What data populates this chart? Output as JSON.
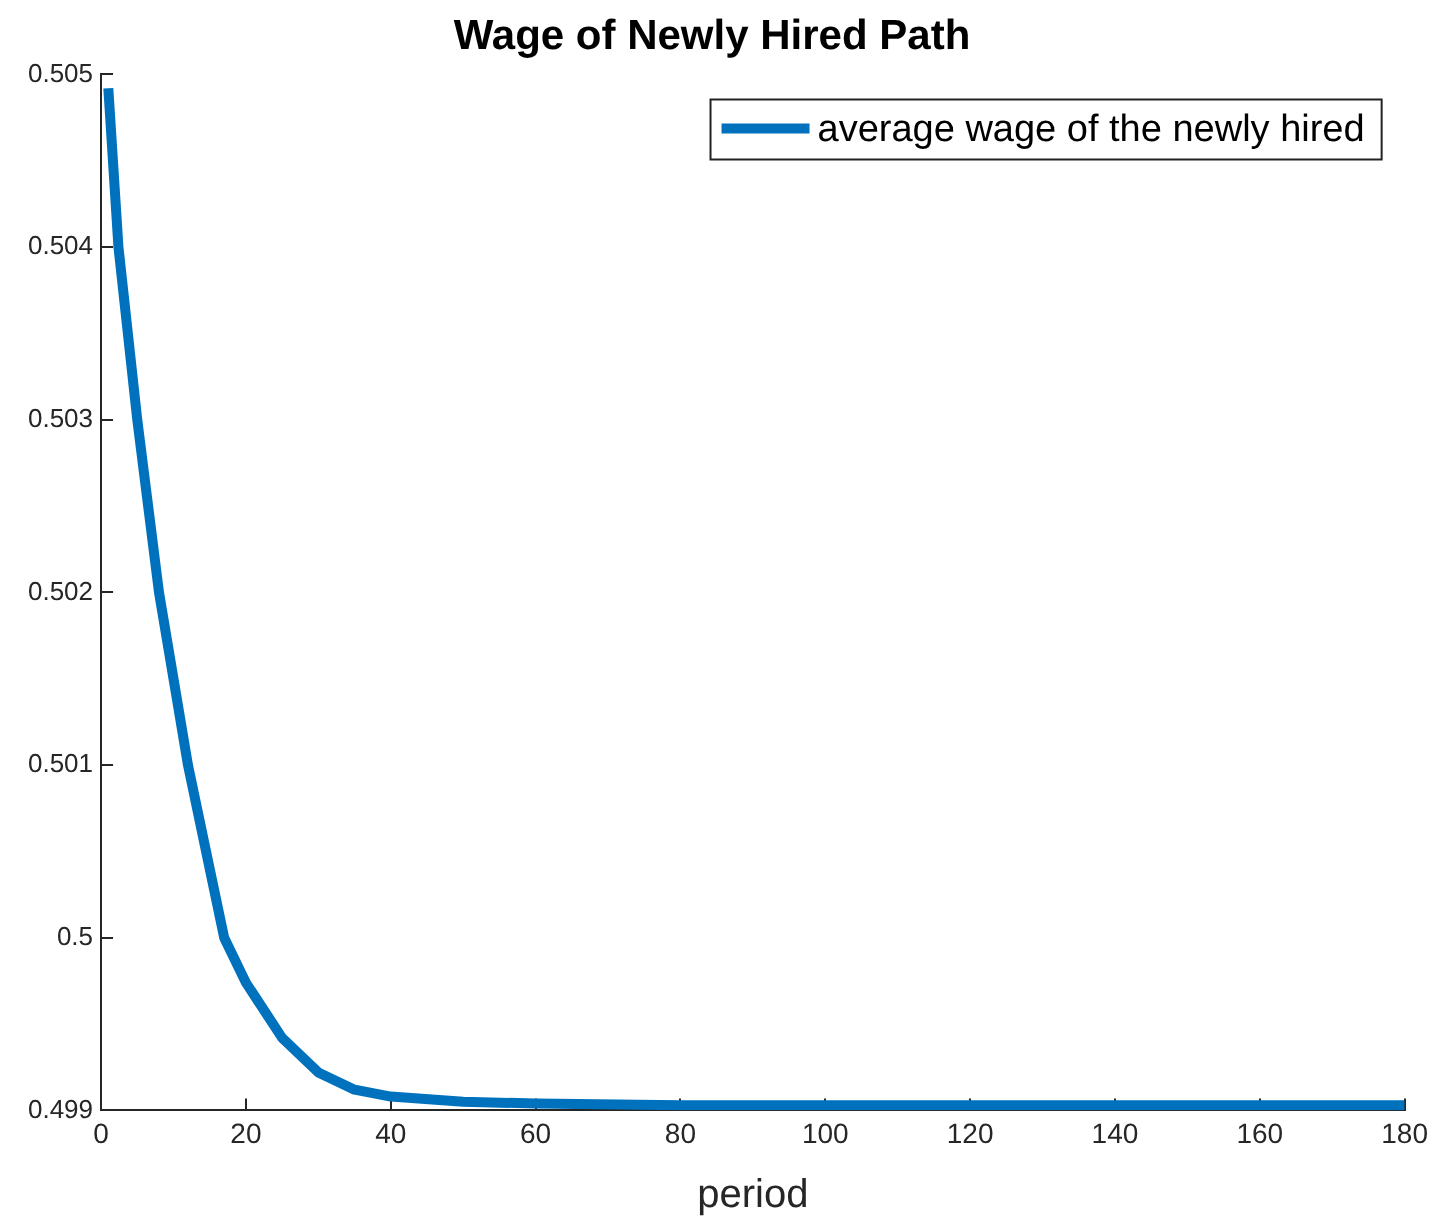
{
  "chart_data": {
    "type": "line",
    "title": "Wage of Newly Hired Path",
    "xlabel": "period",
    "xlim": [
      0,
      180
    ],
    "xticks": [
      0,
      20,
      40,
      60,
      80,
      100,
      120,
      140,
      160,
      180
    ],
    "ylim": [
      0.499,
      0.505
    ],
    "yticks": [
      0.499,
      0.5,
      0.501,
      0.502,
      0.503,
      0.504,
      0.505
    ],
    "grid": false,
    "legend": "top right",
    "marker": "none",
    "line_style": "solid",
    "series": [
      {
        "name": "average wage of the newly hired",
        "color": "#0072bd",
        "x": [
          1,
          2.4,
          5,
          8,
          12,
          15,
          17,
          20,
          25,
          30,
          35,
          40,
          50,
          60,
          80,
          180
        ],
        "values": [
          0.50492,
          0.504,
          0.503,
          0.502,
          0.501,
          0.5004,
          0.5,
          0.49974,
          0.49942,
          0.49922,
          0.49912,
          0.49908,
          0.49905,
          0.49904,
          0.49903,
          0.49903
        ]
      }
    ]
  }
}
